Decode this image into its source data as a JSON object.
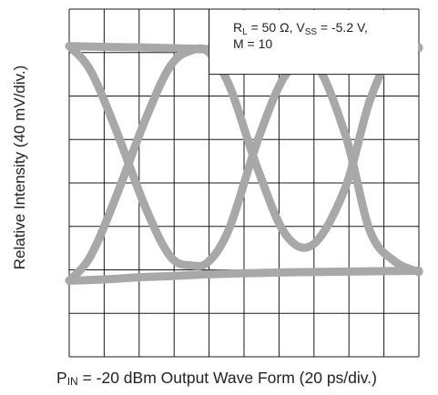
{
  "chart_data": {
    "type": "line",
    "subtype": "eye-diagram",
    "xlabel": {
      "prefix": "P",
      "subscript": "IN",
      "rest": " = -20 dBm Output Wave Form (20 ps/div.)"
    },
    "ylabel": "Relative Intensity (40 mV/div.)",
    "annotation": {
      "line1": {
        "r": "R",
        "r_sub": "L",
        "r_rest": " = 50 Ω, V",
        "v_sub": "SS",
        "v_rest": " = -5.2 V,"
      },
      "line2": "M = 10"
    },
    "grid": true,
    "divisions": {
      "x": 10,
      "y": 8
    },
    "xlim": [
      0,
      10
    ],
    "ylim": [
      0,
      8
    ],
    "colors": {
      "trace": "#a8a8a8",
      "grid": "#1a1a1a",
      "text": "#222222"
    },
    "series": [
      {
        "x": [
          0,
          1,
          2,
          3,
          4,
          5,
          6,
          7,
          8,
          9,
          10
        ],
        "y": [
          7.15,
          7.13,
          7.12,
          7.1,
          7.08,
          7.06,
          7.05,
          7.04,
          7.06,
          7.08,
          7.12
        ]
      },
      {
        "x": [
          0,
          1,
          2,
          3,
          4,
          5,
          6,
          7,
          8,
          9,
          10
        ],
        "y": [
          1.75,
          1.78,
          1.83,
          1.86,
          1.9,
          1.92,
          1.94,
          1.95,
          1.96,
          1.97,
          1.98
        ]
      },
      {
        "x": [
          0,
          0.6,
          1.3,
          2.2,
          2.9,
          3.5,
          4.0,
          4.6,
          5.4,
          6.2,
          7.0,
          7.9,
          8.6,
          9.3,
          10
        ],
        "y": [
          1.75,
          2.3,
          3.6,
          5.5,
          6.7,
          7.05,
          7.0,
          6.2,
          4.3,
          2.8,
          2.6,
          3.9,
          5.9,
          7.05,
          7.1
        ]
      },
      {
        "x": [
          0,
          0.6,
          1.3,
          2.2,
          2.9,
          3.5,
          4.0,
          4.6,
          5.4,
          6.2,
          7.0,
          7.9,
          8.6,
          9.3,
          10
        ],
        "y": [
          7.15,
          6.6,
          5.3,
          3.4,
          2.3,
          2.1,
          2.2,
          3.0,
          5.0,
          6.5,
          6.8,
          5.1,
          2.9,
          2.2,
          1.95
        ]
      }
    ]
  }
}
